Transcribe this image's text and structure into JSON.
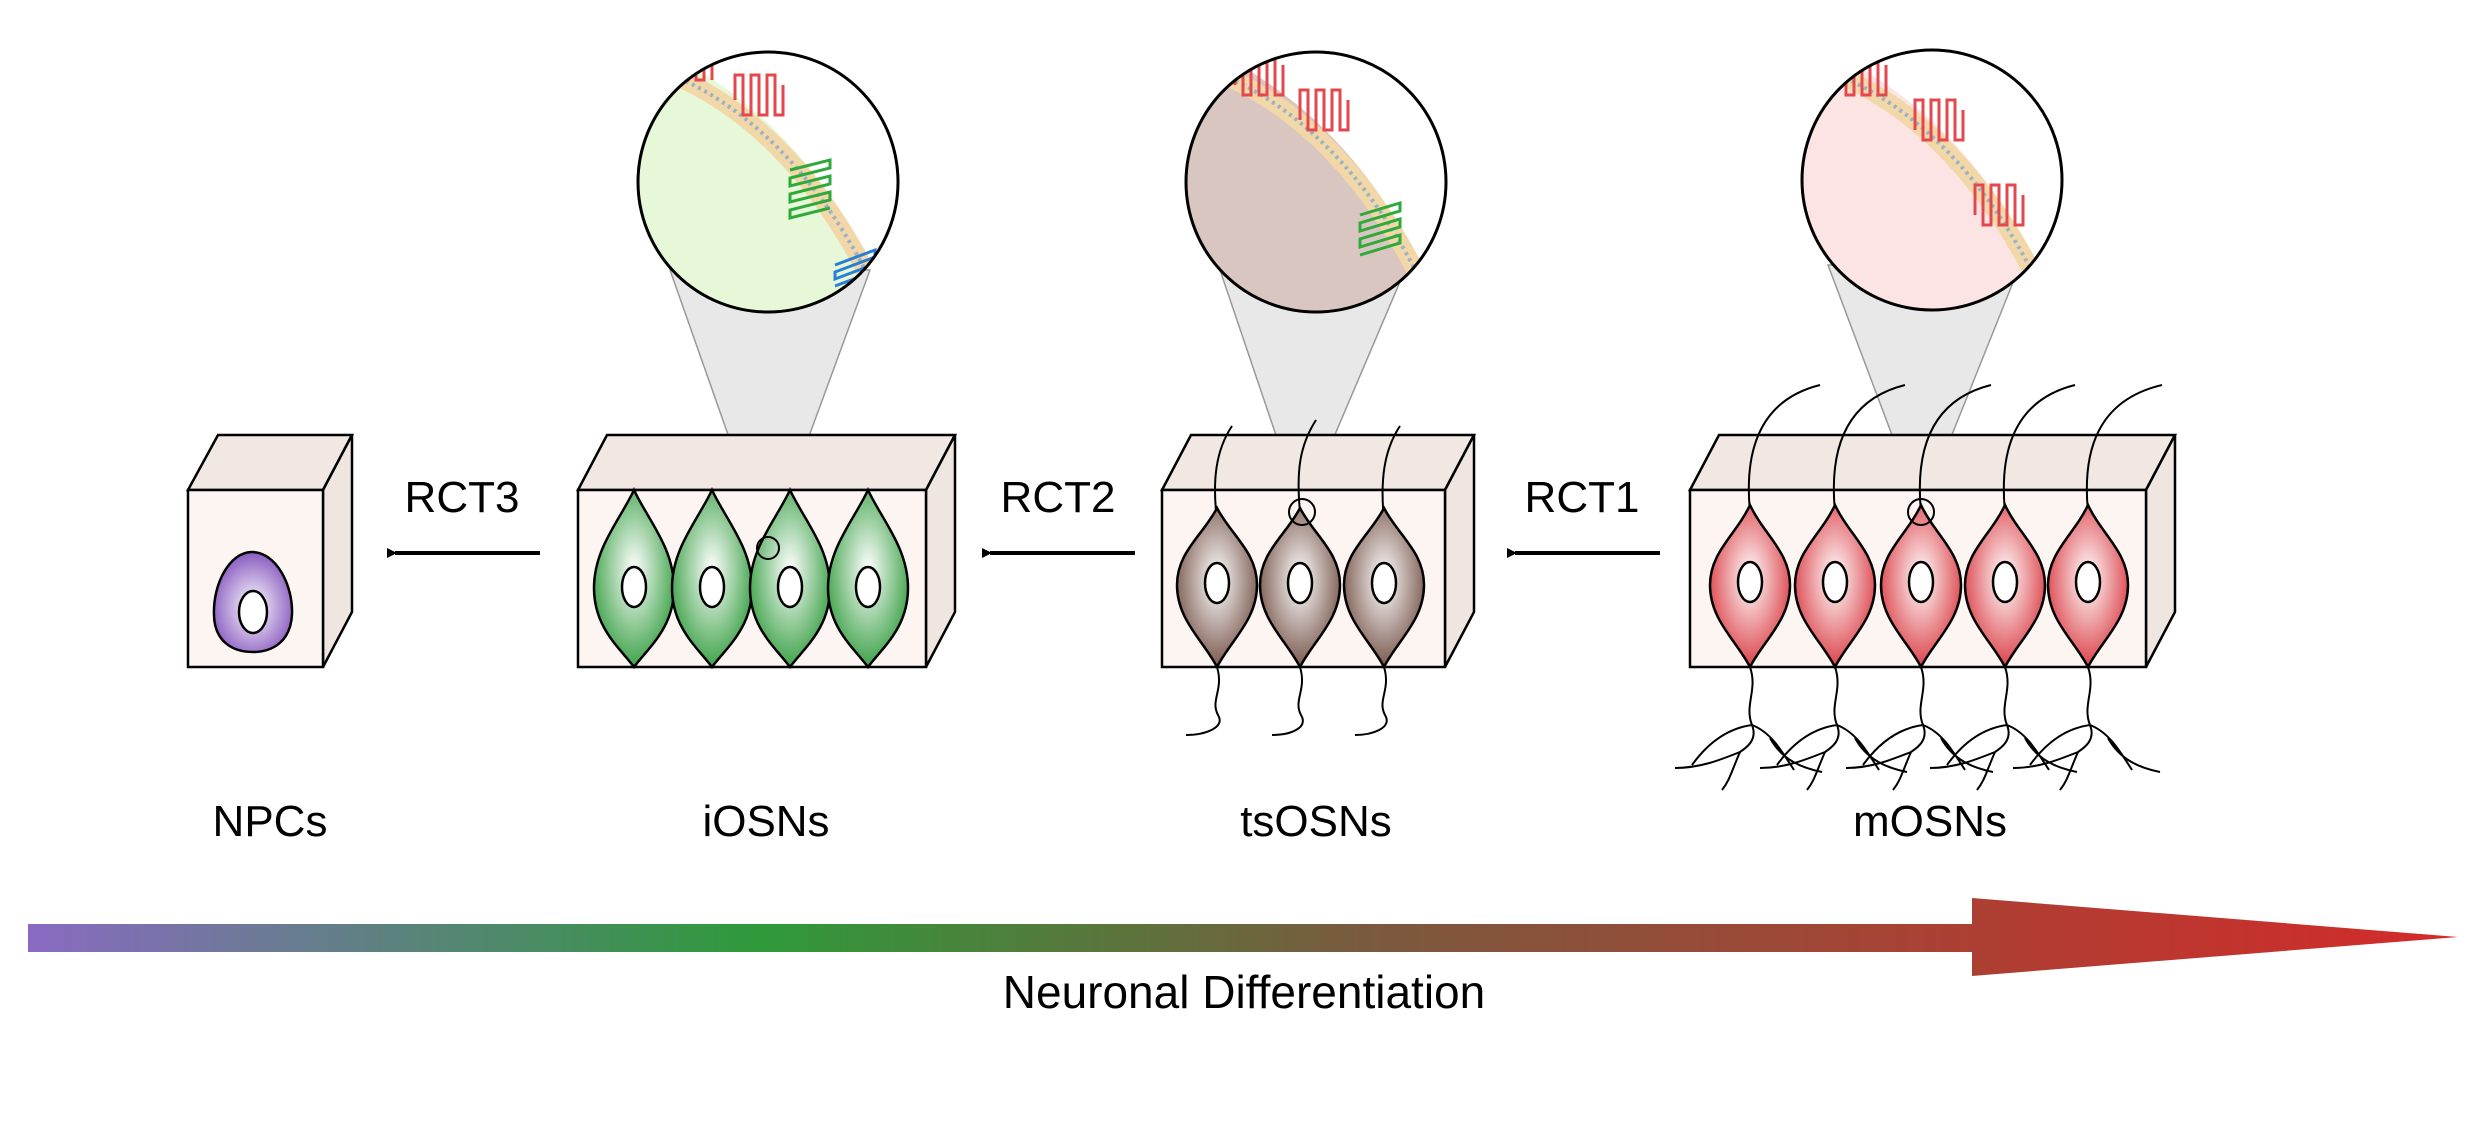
{
  "stages": [
    {
      "id": "npcs",
      "label": "NPCs",
      "cell_color": "#8a5cc0"
    },
    {
      "id": "iosns",
      "label": "iOSNs",
      "cell_color": "#2e9a3a"
    },
    {
      "id": "tsosns",
      "label": "tsOSNs",
      "cell_color": "#6e4a3e"
    },
    {
      "id": "mosns",
      "label": "mOSNs",
      "cell_color": "#d8323a"
    }
  ],
  "transitions": [
    {
      "label": "RCT3"
    },
    {
      "label": "RCT2"
    },
    {
      "label": "RCT1"
    }
  ],
  "axis": {
    "label": "Neuronal Differentiation",
    "gradient": [
      "#8a6ac2",
      "#2e9a3a",
      "#7a5a3e",
      "#d42a2a"
    ]
  },
  "zoom_insets": [
    {
      "stage": "iosns",
      "receptors": [
        "red",
        "green",
        "blue"
      ],
      "fill": "#e6f8d8"
    },
    {
      "stage": "tsosns",
      "receptors": [
        "red",
        "green"
      ],
      "fill": "#d9c6c0"
    },
    {
      "stage": "mosns",
      "receptors": [
        "red"
      ],
      "fill": "#fbe4e3"
    }
  ]
}
